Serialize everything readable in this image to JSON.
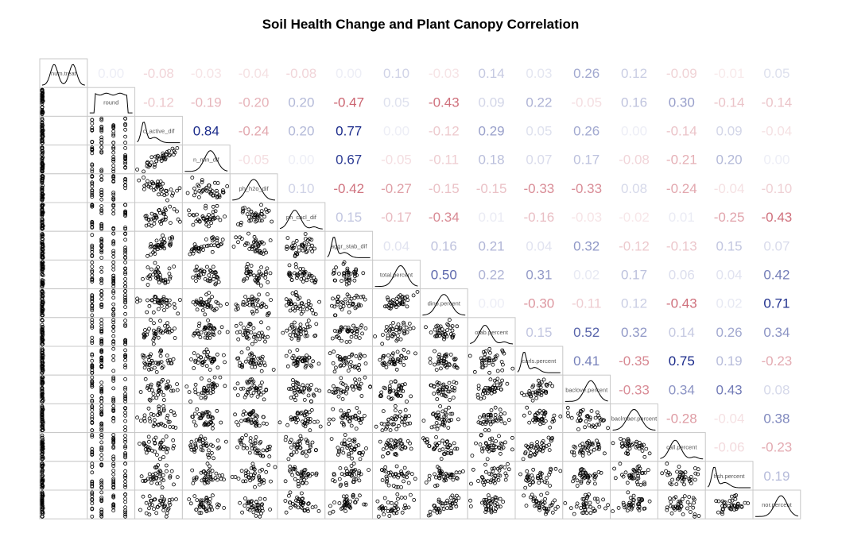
{
  "chart_data": {
    "type": "scatter-matrix",
    "title": "Soil Health Change and Plant Canopy Correlation",
    "variables": [
      "num.treat",
      "round",
      "c_active_dif",
      "n_min_dif",
      "ph_h2o_dif",
      "ph_cacl_dif",
      "aggr_stab_dif",
      "total.percent",
      "dino.percent",
      "otab.percent",
      "carls.percent",
      "baclove.percent",
      "baclmaer.percent",
      "call.percent",
      "fish.percent",
      "nor.percent"
    ],
    "correlations": [
      [
        0.0,
        -0.08,
        -0.03,
        -0.04,
        -0.08,
        0.0,
        0.1,
        -0.03,
        0.14,
        0.03,
        0.26,
        0.12,
        -0.09,
        -0.01,
        0.05
      ],
      [
        -0.12,
        -0.19,
        -0.2,
        0.2,
        -0.47,
        0.05,
        -0.43,
        0.09,
        0.22,
        -0.05,
        0.16,
        0.3,
        -0.14,
        -0.14
      ],
      [
        0.84,
        -0.24,
        0.2,
        0.77,
        0.0,
        -0.12,
        0.29,
        0.05,
        0.26,
        0.0,
        -0.14,
        0.09,
        -0.04
      ],
      [
        -0.05,
        -0.0,
        0.67,
        -0.05,
        -0.11,
        0.18,
        0.07,
        0.17,
        -0.08,
        -0.21,
        0.2,
        0.0
      ],
      [
        0.1,
        -0.42,
        -0.27,
        -0.15,
        -0.15,
        -0.33,
        -0.33,
        0.08,
        -0.24,
        -0.04,
        -0.1
      ],
      [
        0.15,
        -0.17,
        -0.34,
        0.01,
        -0.16,
        -0.03,
        -0.02,
        0.01,
        -0.25,
        -0.43
      ],
      [
        0.04,
        0.16,
        0.21,
        0.04,
        0.32,
        -0.12,
        -0.13,
        0.15,
        0.07
      ],
      [
        0.5,
        0.22,
        0.31,
        0.02,
        0.17,
        0.06,
        0.04,
        0.42
      ],
      [
        -0.0,
        -0.3,
        -0.11,
        0.12,
        -0.43,
        0.02,
        0.71
      ],
      [
        0.15,
        0.52,
        0.32,
        0.14,
        0.26,
        0.34
      ],
      [
        0.41,
        -0.35,
        0.75,
        0.19,
        -0.23
      ],
      [
        -0.33,
        0.34,
        0.43,
        0.08
      ],
      [
        -0.28,
        -0.04,
        0.38
      ],
      [
        -0.06,
        -0.23
      ],
      [
        0.19
      ]
    ],
    "colors": {
      "positive": "#1a2a8a",
      "negative": "#b2182b"
    }
  }
}
